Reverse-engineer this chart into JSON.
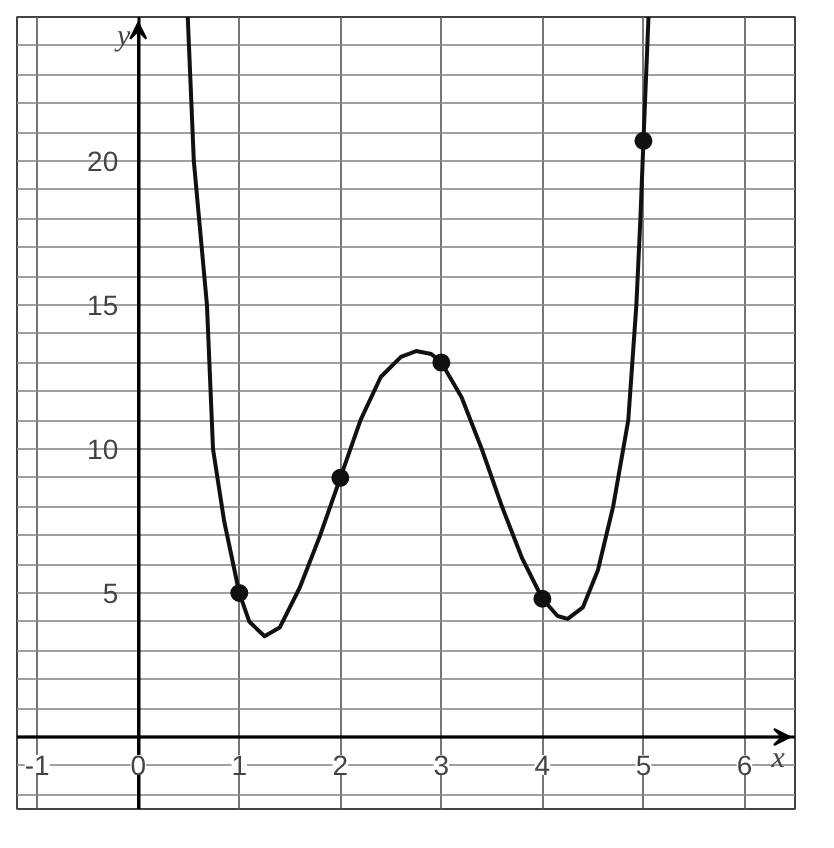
{
  "chart_data": {
    "type": "line",
    "xlabel": "x",
    "ylabel": "y",
    "xlim": [
      -1.2,
      6.5
    ],
    "ylim": [
      -2.5,
      25
    ],
    "xticks": [
      -1,
      0,
      1,
      2,
      3,
      4,
      5,
      6
    ],
    "yticks": [
      {
        "value": -2,
        "label": null
      },
      {
        "value": -1,
        "label": null
      },
      {
        "value": 1,
        "label": null
      },
      {
        "value": 2,
        "label": null
      },
      {
        "value": 3,
        "label": null
      },
      {
        "value": 4,
        "label": null
      },
      5,
      {
        "value": 6,
        "label": null
      },
      {
        "value": 7,
        "label": null
      },
      {
        "value": 8,
        "label": null
      },
      {
        "value": 9,
        "label": null
      },
      10,
      {
        "value": 11,
        "label": null
      },
      {
        "value": 12,
        "label": null
      },
      {
        "value": 13,
        "label": null
      },
      {
        "value": 14,
        "label": null
      },
      15,
      {
        "value": 16,
        "label": null
      },
      {
        "value": 17,
        "label": null
      },
      {
        "value": 18,
        "label": null
      },
      {
        "value": 19,
        "label": null
      },
      20,
      {
        "value": 21,
        "label": null
      },
      {
        "value": 22,
        "label": null
      },
      {
        "value": 23,
        "label": null
      },
      {
        "value": 24,
        "label": null
      },
      {
        "value": 25,
        "label": null
      }
    ],
    "grid": true,
    "series": [
      {
        "type": "line",
        "color": "#111111",
        "line_style": "solid",
        "x": [
          0.49,
          0.55,
          0.68,
          0.74,
          0.85,
          1,
          1.1,
          1.25,
          1.4,
          1.6,
          1.8,
          2,
          2.2,
          2.4,
          2.6,
          2.75,
          2.9,
          3,
          3.2,
          3.4,
          3.6,
          3.8,
          4,
          4.15,
          4.25,
          4.4,
          4.55,
          4.7,
          4.85,
          4.93,
          4.97,
          5,
          5.05
        ],
        "values": [
          25,
          20,
          15,
          10,
          7.5,
          5,
          4,
          3.5,
          3.8,
          5.2,
          7,
          9,
          11,
          12.5,
          13.2,
          13.4,
          13.3,
          13,
          11.8,
          10,
          8,
          6.2,
          4.8,
          4.2,
          4.1,
          4.5,
          5.8,
          8,
          11,
          15,
          18,
          20.7,
          25
        ]
      },
      {
        "type": "scatter",
        "color": "#111111",
        "marker": "circle",
        "x": [
          1,
          2,
          3,
          4,
          5
        ],
        "values": [
          5,
          9,
          13,
          4.8,
          20.7
        ]
      }
    ]
  }
}
